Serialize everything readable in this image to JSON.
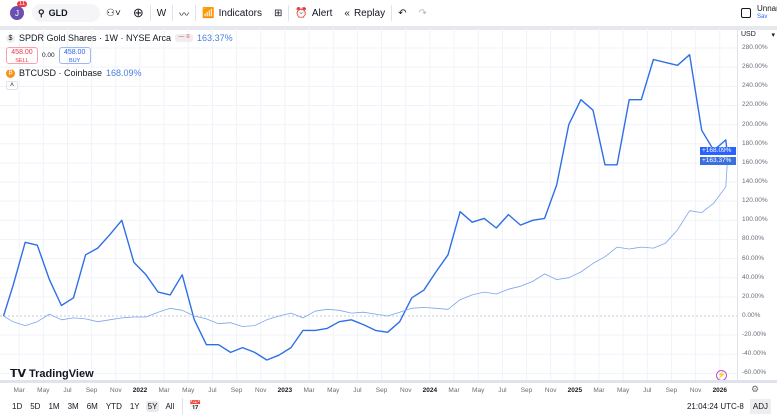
{
  "toolbar": {
    "avatar_letter": "J",
    "notification_count": "11",
    "symbol": "GLD",
    "interval": "W",
    "indicators_label": "Indicators",
    "alert_label": "Alert",
    "replay_label": "Replay",
    "layout_name": "Unnar",
    "layout_sub": "Sav"
  },
  "legend": {
    "main": {
      "title": "SPDR Gold Shares · 1W · NYSE Arca",
      "change": "163.37%",
      "sell_price": "458.00",
      "sell_label": "SELL",
      "spread": "0.00",
      "buy_price": "458.00",
      "buy_label": "BUY"
    },
    "compare": {
      "title": "BTCUSD · Coinbase",
      "change": "168.09%"
    }
  },
  "currency": "USD",
  "watermark": "TradingView",
  "timezone_clock": "21:04:24 UTC-8",
  "adj_label": "ADJ",
  "ranges": [
    "1D",
    "5D",
    "1M",
    "3M",
    "6M",
    "YTD",
    "1Y",
    "5Y",
    "All"
  ],
  "active_range": "5Y",
  "colors": {
    "btc": "#2f6fe6",
    "gld": "#7fa3ee",
    "price_label": "#2962ff"
  },
  "chart_data": {
    "type": "line",
    "ylim": [
      -60,
      290
    ],
    "y_ticks": [
      "280.00%",
      "260.00%",
      "240.00%",
      "220.00%",
      "200.00%",
      "180.00%",
      "160.00%",
      "140.00%",
      "120.00%",
      "100.00%",
      "80.00%",
      "60.00%",
      "40.00%",
      "20.00%",
      "0.00%",
      "-20.00%",
      "-40.00%",
      "-60.00%"
    ],
    "x_ticks": [
      {
        "label": "Mar",
        "date": "2021-03"
      },
      {
        "label": "May",
        "date": "2021-05"
      },
      {
        "label": "Jul",
        "date": "2021-07"
      },
      {
        "label": "Sep",
        "date": "2021-09"
      },
      {
        "label": "Nov",
        "date": "2021-11"
      },
      {
        "label": "2022",
        "date": "2022-01",
        "year": true
      },
      {
        "label": "Mar",
        "date": "2022-03"
      },
      {
        "label": "May",
        "date": "2022-05"
      },
      {
        "label": "Jul",
        "date": "2022-07"
      },
      {
        "label": "Sep",
        "date": "2022-09"
      },
      {
        "label": "Nov",
        "date": "2022-11"
      },
      {
        "label": "2023",
        "date": "2023-01",
        "year": true
      },
      {
        "label": "Mar",
        "date": "2023-03"
      },
      {
        "label": "May",
        "date": "2023-05"
      },
      {
        "label": "Jul",
        "date": "2023-07"
      },
      {
        "label": "Sep",
        "date": "2023-09"
      },
      {
        "label": "Nov",
        "date": "2023-11"
      },
      {
        "label": "2024",
        "date": "2024-01",
        "year": true
      },
      {
        "label": "Mar",
        "date": "2024-03"
      },
      {
        "label": "May",
        "date": "2024-05"
      },
      {
        "label": "Jul",
        "date": "2024-07"
      },
      {
        "label": "Sep",
        "date": "2024-09"
      },
      {
        "label": "Nov",
        "date": "2024-11"
      },
      {
        "label": "2025",
        "date": "2025-01",
        "year": true
      },
      {
        "label": "Mar",
        "date": "2025-03"
      },
      {
        "label": "May",
        "date": "2025-05"
      },
      {
        "label": "Jul",
        "date": "2025-07"
      },
      {
        "label": "Sep",
        "date": "2025-09"
      },
      {
        "label": "Nov",
        "date": "2025-11"
      },
      {
        "label": "2026",
        "date": "2026-01",
        "year": true
      }
    ],
    "dates": [
      "2021-01-22",
      "2021-02",
      "2021-03",
      "2021-04",
      "2021-05",
      "2021-06",
      "2021-07",
      "2021-08",
      "2021-09",
      "2021-10",
      "2021-11",
      "2021-12",
      "2022-01",
      "2022-02",
      "2022-03",
      "2022-04",
      "2022-05",
      "2022-06",
      "2022-07",
      "2022-08",
      "2022-09",
      "2022-10",
      "2022-11",
      "2022-12",
      "2023-01",
      "2023-02",
      "2023-03",
      "2023-04",
      "2023-05",
      "2023-06",
      "2023-07",
      "2023-08",
      "2023-09",
      "2023-10",
      "2023-11",
      "2023-12",
      "2024-01",
      "2024-02",
      "2024-03",
      "2024-04",
      "2024-05",
      "2024-06",
      "2024-07",
      "2024-08",
      "2024-09",
      "2024-10",
      "2024-11",
      "2024-12",
      "2025-01",
      "2025-02",
      "2025-03",
      "2025-04",
      "2025-05",
      "2025-06",
      "2025-07",
      "2025-08",
      "2025-09",
      "2025-10",
      "2025-11",
      "2025-12",
      "2026-01",
      "2026-01-20"
    ],
    "series": [
      {
        "name": "BTCUSD",
        "last_label": "+168.09%",
        "values": [
          0,
          32,
          77,
          74,
          38,
          11,
          19,
          64,
          71,
          85,
          100,
          56,
          43,
          25,
          22,
          43,
          -4,
          -30,
          -30,
          -38,
          -33,
          -38,
          -46,
          -41,
          -33,
          -15,
          -15,
          -13,
          -6,
          -4,
          -9,
          -15,
          -17,
          -6,
          19,
          27,
          46,
          64,
          109,
          98,
          102,
          92,
          106,
          95,
          100,
          102,
          137,
          200,
          226,
          215,
          158,
          158,
          226,
          226,
          268,
          265,
          262,
          273,
          194,
          173,
          184,
          168.09
        ]
      },
      {
        "name": "GLD",
        "last_label": "+163.37%",
        "values": [
          0,
          -6,
          -10,
          -6,
          2,
          -4,
          -2,
          -3,
          -6,
          -4,
          -2,
          -1,
          -1,
          4,
          8,
          6,
          0,
          -3,
          -8,
          -7,
          -11,
          -10,
          -4,
          0,
          3,
          -2,
          5,
          7,
          6,
          3,
          4,
          2,
          0,
          4,
          8,
          9,
          8,
          7,
          17,
          22,
          25,
          23,
          28,
          31,
          36,
          44,
          38,
          40,
          46,
          55,
          62,
          72,
          70,
          72,
          71,
          76,
          90,
          110,
          108,
          118,
          135,
          163.37
        ]
      }
    ]
  }
}
